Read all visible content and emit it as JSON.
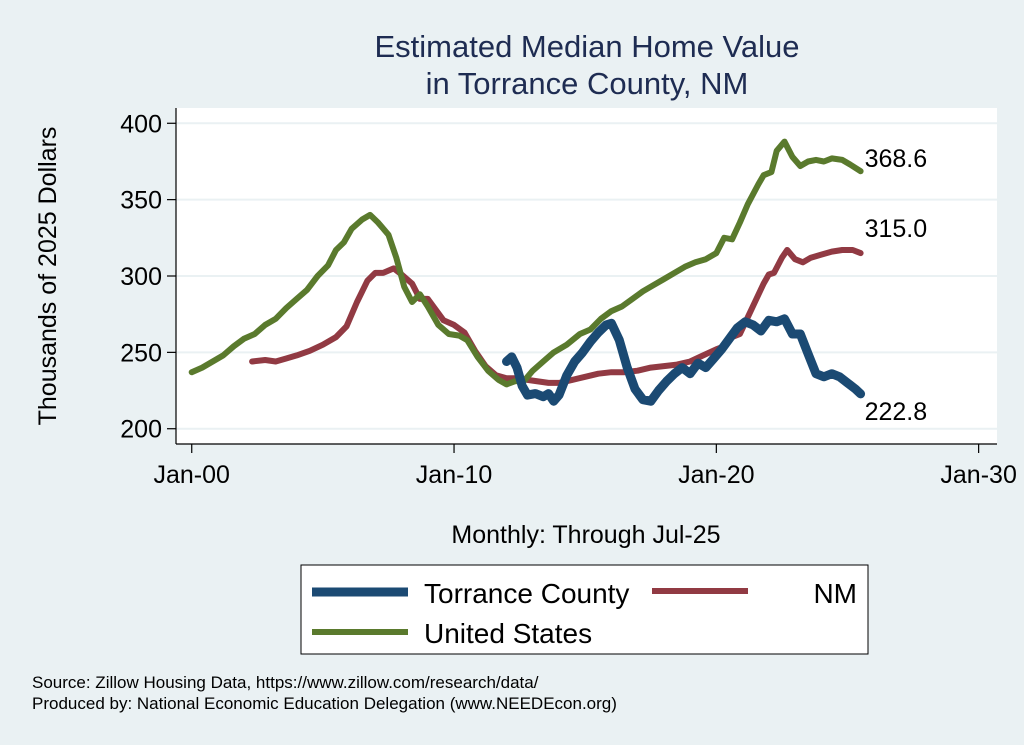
{
  "chart_data": {
    "type": "line",
    "title": [
      "Estimated Median Home Value",
      "in Torrance County, NM"
    ],
    "xlabel": "Monthly: Through Jul-25",
    "ylabel": "Thousands of 2025 Dollars",
    "xlim": [
      1999.4,
      2030.7
    ],
    "ylim": [
      190,
      410
    ],
    "x_ticks": [
      {
        "value": 2000,
        "label": "Jan-00"
      },
      {
        "value": 2010,
        "label": "Jan-10"
      },
      {
        "value": 2020,
        "label": "Jan-20"
      },
      {
        "value": 2030,
        "label": "Jan-30"
      }
    ],
    "y_ticks": [
      200,
      250,
      300,
      350,
      400
    ],
    "grid": true,
    "legend_position": "bottom",
    "series": [
      {
        "name": "Torrance County",
        "color": "#1b4a73",
        "end_label": "222.8",
        "points": [
          [
            2012.0,
            244
          ],
          [
            2012.2,
            247
          ],
          [
            2012.4,
            240
          ],
          [
            2012.6,
            228
          ],
          [
            2012.8,
            222
          ],
          [
            2013.1,
            223
          ],
          [
            2013.4,
            221
          ],
          [
            2013.6,
            223
          ],
          [
            2013.8,
            218
          ],
          [
            2014.0,
            222
          ],
          [
            2014.3,
            235
          ],
          [
            2014.6,
            244
          ],
          [
            2014.9,
            250
          ],
          [
            2015.2,
            257
          ],
          [
            2015.5,
            263
          ],
          [
            2015.8,
            268
          ],
          [
            2016.0,
            269
          ],
          [
            2016.3,
            258
          ],
          [
            2016.6,
            240
          ],
          [
            2016.9,
            226
          ],
          [
            2017.2,
            219
          ],
          [
            2017.5,
            218
          ],
          [
            2017.8,
            225
          ],
          [
            2018.1,
            231
          ],
          [
            2018.4,
            236
          ],
          [
            2018.7,
            240
          ],
          [
            2019.0,
            236
          ],
          [
            2019.3,
            243
          ],
          [
            2019.6,
            240
          ],
          [
            2019.9,
            246
          ],
          [
            2020.2,
            252
          ],
          [
            2020.5,
            259
          ],
          [
            2020.8,
            266
          ],
          [
            2021.1,
            270
          ],
          [
            2021.4,
            268
          ],
          [
            2021.7,
            264
          ],
          [
            2022.0,
            271
          ],
          [
            2022.3,
            270
          ],
          [
            2022.6,
            272
          ],
          [
            2022.9,
            262
          ],
          [
            2023.2,
            262
          ],
          [
            2023.5,
            249
          ],
          [
            2023.8,
            236
          ],
          [
            2024.1,
            234
          ],
          [
            2024.4,
            236
          ],
          [
            2024.7,
            234
          ],
          [
            2025.0,
            230
          ],
          [
            2025.3,
            226
          ],
          [
            2025.5,
            222.8
          ]
        ]
      },
      {
        "name": "NM",
        "color": "#913a43",
        "end_label": "315.0",
        "points": [
          [
            2002.3,
            244
          ],
          [
            2002.8,
            245
          ],
          [
            2003.2,
            244
          ],
          [
            2003.6,
            246
          ],
          [
            2004.0,
            248
          ],
          [
            2004.5,
            251
          ],
          [
            2005.0,
            255
          ],
          [
            2005.5,
            260
          ],
          [
            2005.9,
            267
          ],
          [
            2006.3,
            283
          ],
          [
            2006.7,
            297
          ],
          [
            2007.0,
            302
          ],
          [
            2007.3,
            302
          ],
          [
            2007.7,
            305
          ],
          [
            2008.0,
            301
          ],
          [
            2008.4,
            295
          ],
          [
            2008.7,
            285
          ],
          [
            2009.0,
            285
          ],
          [
            2009.3,
            278
          ],
          [
            2009.6,
            271
          ],
          [
            2010.0,
            268
          ],
          [
            2010.4,
            263
          ],
          [
            2010.8,
            251
          ],
          [
            2011.2,
            241
          ],
          [
            2011.6,
            235
          ],
          [
            2012.0,
            233
          ],
          [
            2012.4,
            233
          ],
          [
            2012.8,
            232
          ],
          [
            2013.2,
            231
          ],
          [
            2013.6,
            230
          ],
          [
            2014.0,
            230
          ],
          [
            2014.5,
            232
          ],
          [
            2015.0,
            234
          ],
          [
            2015.5,
            236
          ],
          [
            2016.0,
            237
          ],
          [
            2016.5,
            237
          ],
          [
            2017.0,
            238
          ],
          [
            2017.5,
            240
          ],
          [
            2018.0,
            241
          ],
          [
            2018.5,
            242
          ],
          [
            2019.0,
            244
          ],
          [
            2019.5,
            248
          ],
          [
            2020.0,
            252
          ],
          [
            2020.3,
            254
          ],
          [
            2020.6,
            260
          ],
          [
            2020.9,
            262
          ],
          [
            2021.2,
            273
          ],
          [
            2021.5,
            284
          ],
          [
            2021.8,
            295
          ],
          [
            2022.0,
            301
          ],
          [
            2022.2,
            302
          ],
          [
            2022.5,
            312
          ],
          [
            2022.7,
            317
          ],
          [
            2023.0,
            311
          ],
          [
            2023.3,
            309
          ],
          [
            2023.6,
            312
          ],
          [
            2024.0,
            314
          ],
          [
            2024.4,
            316
          ],
          [
            2024.8,
            317
          ],
          [
            2025.2,
            317
          ],
          [
            2025.5,
            315.0
          ]
        ]
      },
      {
        "name": "United States",
        "color": "#5a7a2d",
        "end_label": "368.6",
        "points": [
          [
            2000.0,
            237
          ],
          [
            2000.4,
            240
          ],
          [
            2000.8,
            244
          ],
          [
            2001.2,
            248
          ],
          [
            2001.6,
            254
          ],
          [
            2002.0,
            259
          ],
          [
            2002.4,
            262
          ],
          [
            2002.8,
            268
          ],
          [
            2003.2,
            272
          ],
          [
            2003.6,
            279
          ],
          [
            2004.0,
            285
          ],
          [
            2004.4,
            291
          ],
          [
            2004.8,
            300
          ],
          [
            2005.2,
            307
          ],
          [
            2005.5,
            317
          ],
          [
            2005.8,
            322
          ],
          [
            2006.1,
            331
          ],
          [
            2006.5,
            337
          ],
          [
            2006.8,
            340
          ],
          [
            2007.1,
            335
          ],
          [
            2007.5,
            327
          ],
          [
            2007.8,
            312
          ],
          [
            2008.1,
            293
          ],
          [
            2008.4,
            283
          ],
          [
            2008.7,
            288
          ],
          [
            2009.0,
            280
          ],
          [
            2009.4,
            268
          ],
          [
            2009.8,
            262
          ],
          [
            2010.2,
            261
          ],
          [
            2010.5,
            258
          ],
          [
            2010.9,
            247
          ],
          [
            2011.3,
            238
          ],
          [
            2011.7,
            232
          ],
          [
            2012.0,
            229
          ],
          [
            2012.3,
            231
          ],
          [
            2012.7,
            232
          ],
          [
            2013.0,
            238
          ],
          [
            2013.4,
            244
          ],
          [
            2013.8,
            250
          ],
          [
            2014.3,
            255
          ],
          [
            2014.8,
            262
          ],
          [
            2015.2,
            265
          ],
          [
            2015.6,
            272
          ],
          [
            2016.0,
            277
          ],
          [
            2016.4,
            280
          ],
          [
            2016.8,
            285
          ],
          [
            2017.2,
            290
          ],
          [
            2017.6,
            294
          ],
          [
            2018.0,
            298
          ],
          [
            2018.4,
            302
          ],
          [
            2018.8,
            306
          ],
          [
            2019.2,
            309
          ],
          [
            2019.6,
            311
          ],
          [
            2020.0,
            315
          ],
          [
            2020.3,
            325
          ],
          [
            2020.6,
            324
          ],
          [
            2020.9,
            335
          ],
          [
            2021.2,
            347
          ],
          [
            2021.6,
            360
          ],
          [
            2021.8,
            366
          ],
          [
            2022.1,
            368
          ],
          [
            2022.3,
            382
          ],
          [
            2022.6,
            388
          ],
          [
            2022.9,
            378
          ],
          [
            2023.2,
            372
          ],
          [
            2023.5,
            375
          ],
          [
            2023.8,
            376
          ],
          [
            2024.1,
            375
          ],
          [
            2024.4,
            377
          ],
          [
            2024.8,
            376
          ],
          [
            2025.1,
            373
          ],
          [
            2025.5,
            368.6
          ]
        ]
      }
    ],
    "legend": {
      "rows": [
        [
          "Torrance County",
          "NM"
        ],
        [
          "United States"
        ]
      ]
    },
    "notes": [
      "Source: Zillow Housing Data, https://www.zillow.com/research/data/",
      "Produced by: National Economic Education Delegation (www.NEEDEcon.org)"
    ]
  },
  "colors": {
    "background": "#eaf1f3",
    "plot_background": "#ffffff",
    "grid": "#eaf1f3",
    "title": "#1e2c52"
  }
}
